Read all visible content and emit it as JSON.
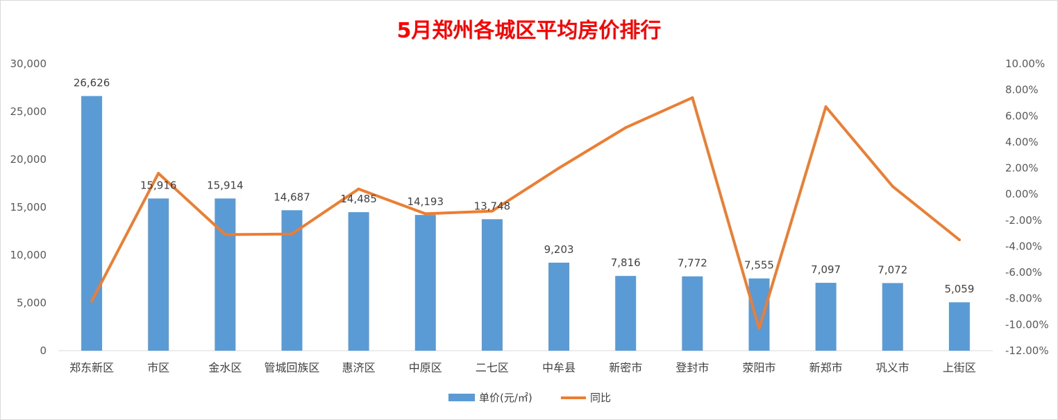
{
  "chart_data": {
    "type": "bar",
    "title": "5月郑州各城区平均房价排行",
    "categories": [
      "郑东新区",
      "市区",
      "金水区",
      "管城回族区",
      "惠济区",
      "中原区",
      "二七区",
      "中牟县",
      "新密市",
      "登封市",
      "荥阳市",
      "新郑市",
      "巩义市",
      "上街区"
    ],
    "series": [
      {
        "name": "单价(元/㎡)",
        "type": "bar",
        "axis": "left",
        "color": "#5b9bd5",
        "values": [
          26626,
          15916,
          15914,
          14687,
          14485,
          14193,
          13748,
          9203,
          7816,
          7772,
          7555,
          7097,
          7072,
          5059
        ],
        "labels": [
          "26,626",
          "15,916",
          "15,914",
          "14,687",
          "14,485",
          "14,193",
          "13,748",
          "9,203",
          "7,816",
          "7,772",
          "7,555",
          "7,097",
          "7,072",
          "5,059"
        ]
      },
      {
        "name": "同比",
        "type": "line",
        "axis": "right",
        "color": "#ed7d31",
        "values": [
          -8.2,
          1.6,
          -3.1,
          -3.05,
          0.4,
          -1.5,
          -1.3,
          2.0,
          5.1,
          7.4,
          -10.3,
          6.7,
          0.6,
          -3.5
        ]
      }
    ],
    "y_left": {
      "min": 0,
      "max": 30000,
      "ticks": [
        0,
        5000,
        10000,
        15000,
        20000,
        25000,
        30000
      ],
      "tick_labels": [
        "0",
        "5,000",
        "10,000",
        "15,000",
        "20,000",
        "25,000",
        "30,000"
      ]
    },
    "y_right": {
      "min": -12,
      "max": 10,
      "ticks": [
        -12,
        -10,
        -8,
        -6,
        -4,
        -2,
        0,
        2,
        4,
        6,
        8,
        10
      ],
      "tick_labels": [
        "-12.00%",
        "-10.00%",
        "-8.00%",
        "-6.00%",
        "-4.00%",
        "-2.00%",
        "0.00%",
        "2.00%",
        "4.00%",
        "6.00%",
        "8.00%",
        "10.00%"
      ]
    },
    "grid": false,
    "legend_position": "bottom"
  }
}
